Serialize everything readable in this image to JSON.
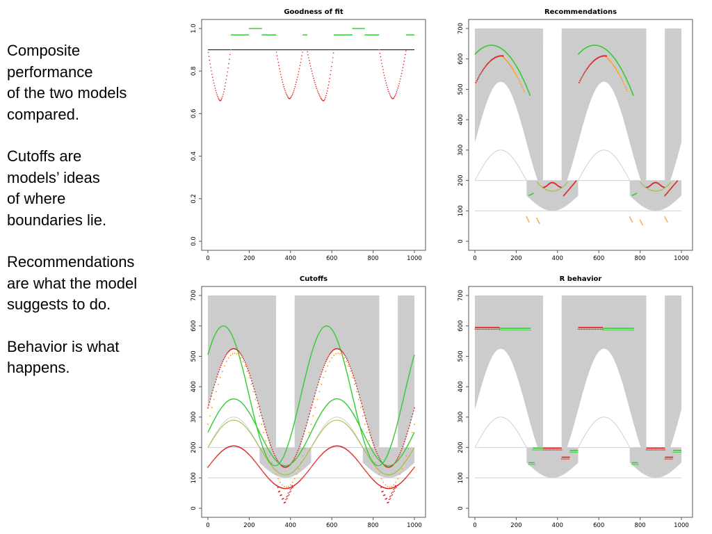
{
  "side_text": {
    "p1": "Composite\nperformance\nof the two models\ncompared.",
    "p2": "Cutoffs are\nmodels’ ideas\nof where\nboundaries lie.",
    "p3": "Recommendations\nare what the model\nsuggests to do.",
    "p4": "Behavior is what\nhappens."
  },
  "chart_data": [
    {
      "id": "goodness",
      "type": "line",
      "title": "Goodness of fit",
      "xlim": [
        0,
        1000
      ],
      "ylim": [
        0,
        1
      ],
      "xticks": [
        "0",
        "200",
        "400",
        "600",
        "800",
        "1000"
      ],
      "yticks": [
        "0.0",
        "0.2",
        "0.4",
        "0.6",
        "0.8",
        "1.0"
      ],
      "threshold": 0.9,
      "colors": {
        "good": "#33cc33",
        "bad": "#dd2222",
        "line": "#000000"
      },
      "dips": [
        {
          "start": 0,
          "min_x": 60,
          "min_y": 0.66,
          "end": 110
        },
        {
          "start": 330,
          "min_x": 395,
          "min_y": 0.67,
          "end": 460
        },
        {
          "start": 480,
          "min_x": 560,
          "min_y": 0.66,
          "end": 610
        },
        {
          "start": 830,
          "min_x": 895,
          "min_y": 0.67,
          "end": 960
        }
      ],
      "plateaus": [
        {
          "from": 200,
          "to": 260,
          "y": 1.0
        },
        {
          "from": 700,
          "to": 760,
          "y": 1.0
        }
      ],
      "high_y": 0.97
    },
    {
      "id": "recommendations",
      "type": "scatter",
      "title": "Recommendations",
      "xlim": [
        0,
        1000
      ],
      "ylim": [
        0,
        700
      ],
      "xticks": [
        "0",
        "200",
        "400",
        "600",
        "800",
        "1000"
      ],
      "yticks": [
        "0",
        "100",
        "200",
        "300",
        "400",
        "500",
        "600",
        "700"
      ],
      "colors": {
        "band": "#cccccc",
        "green": "#33cc33",
        "orange": "#ff9900",
        "red": "#dd2222",
        "ref": "#cccccc"
      },
      "band_segments": [
        [
          0,
          330
        ],
        [
          420,
          830
        ],
        [
          920,
          1000
        ]
      ],
      "band_low": {
        "center": 125,
        "peak": 525,
        "base": 125,
        "period": 500
      },
      "low_band": {
        "top": 200,
        "center": 375,
        "period": 500
      },
      "ref_lines": [
        200,
        100
      ],
      "ref_curve": {
        "center": 125,
        "mean": 200,
        "amp": 100,
        "period": 500
      },
      "green_arcs": [
        {
          "x0": 0,
          "x1": 270,
          "peak_x": 80,
          "peak_y": 645,
          "end_y": 475
        },
        {
          "x0": 500,
          "x1": 770,
          "peak_x": 580,
          "peak_y": 645,
          "end_y": 475
        }
      ],
      "red_arcs": [
        {
          "x0": 0,
          "x1": 140,
          "peak_x": 130,
          "peak_y": 610,
          "start_y": 515
        },
        {
          "x0": 500,
          "x1": 640,
          "peak_x": 630,
          "peak_y": 610,
          "start_y": 515
        }
      ]
    },
    {
      "id": "cutoffs",
      "type": "scatter",
      "title": "Cutoffs",
      "xlim": [
        0,
        1000
      ],
      "ylim": [
        0,
        700
      ],
      "xticks": [
        "0",
        "200",
        "400",
        "600",
        "800",
        "1000"
      ],
      "yticks": [
        "0",
        "100",
        "200",
        "300",
        "400",
        "500",
        "600",
        "700"
      ],
      "colors": {
        "band": "#cccccc",
        "green": "#33cc33",
        "olive": "#99bb33",
        "orange": "#ff9900",
        "red": "#dd2222",
        "ref": "#cccccc"
      },
      "band_segments": [
        [
          0,
          330
        ],
        [
          420,
          830
        ],
        [
          920,
          1000
        ]
      ],
      "curves": [
        {
          "role": "upper",
          "mean": 370,
          "amp": 230,
          "center": 75,
          "color": "green"
        },
        {
          "role": "upper-red",
          "mean": 330,
          "amp": 195,
          "center": 125,
          "color": "red"
        },
        {
          "role": "mid",
          "mean": 250,
          "amp": 110,
          "center": 125,
          "color": "green"
        },
        {
          "role": "mid-olive",
          "mean": 200,
          "amp": 90,
          "center": 125,
          "color": "olive"
        },
        {
          "role": "low",
          "mean": 135,
          "amp": 70,
          "center": 125,
          "color": "red"
        }
      ]
    },
    {
      "id": "behavior",
      "type": "scatter",
      "title": "R behavior",
      "xlim": [
        0,
        1000
      ],
      "ylim": [
        0,
        700
      ],
      "xticks": [
        "0",
        "200",
        "400",
        "600",
        "800",
        "1000"
      ],
      "yticks": [
        "0",
        "100",
        "200",
        "300",
        "400",
        "500",
        "600",
        "700"
      ],
      "colors": {
        "band": "#cccccc",
        "green": "#33cc33",
        "red": "#dd2222",
        "ref": "#cccccc"
      },
      "band_segments": [
        [
          0,
          330
        ],
        [
          420,
          830
        ],
        [
          920,
          1000
        ]
      ],
      "segments": [
        {
          "x0": 0,
          "x1": 120,
          "y": 595,
          "color": "red"
        },
        {
          "x0": 120,
          "x1": 270,
          "y": 592,
          "color": "green"
        },
        {
          "x0": 500,
          "x1": 620,
          "y": 595,
          "color": "red"
        },
        {
          "x0": 620,
          "x1": 770,
          "y": 592,
          "color": "green"
        },
        {
          "x0": 260,
          "x1": 290,
          "y": 150,
          "color": "green"
        },
        {
          "x0": 760,
          "x1": 790,
          "y": 150,
          "color": "green"
        },
        {
          "x0": 330,
          "x1": 420,
          "y": 198,
          "color": "red"
        },
        {
          "x0": 830,
          "x1": 920,
          "y": 198,
          "color": "red"
        },
        {
          "x0": 420,
          "x1": 460,
          "y": 168,
          "color": "red"
        },
        {
          "x0": 920,
          "x1": 960,
          "y": 168,
          "color": "red"
        },
        {
          "x0": 280,
          "x1": 330,
          "y": 198,
          "color": "green"
        },
        {
          "x0": 460,
          "x1": 500,
          "y": 190,
          "color": "green"
        },
        {
          "x0": 960,
          "x1": 1000,
          "y": 190,
          "color": "green"
        }
      ]
    }
  ]
}
